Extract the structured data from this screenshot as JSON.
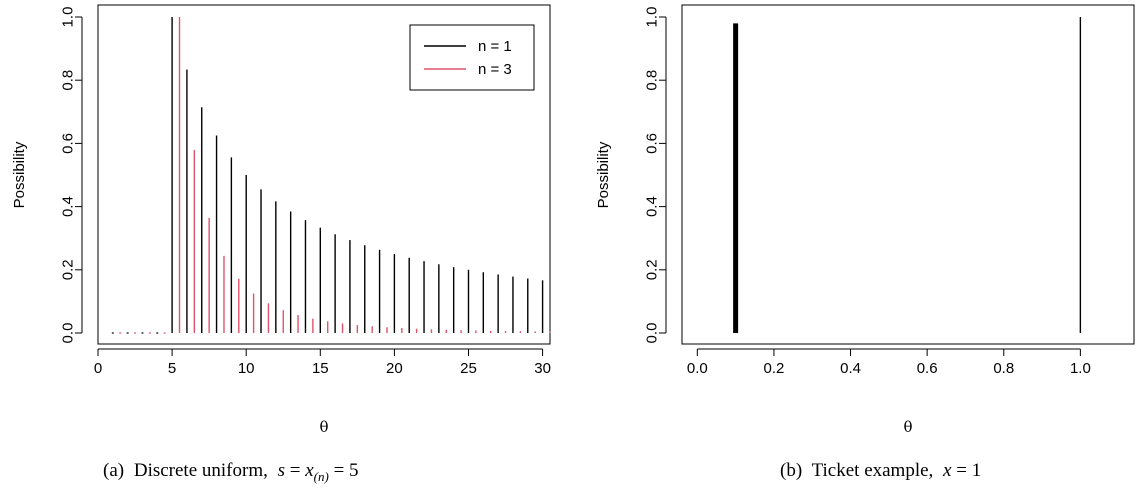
{
  "chart_data": [
    {
      "type": "line",
      "panel": "a",
      "ylabel": "Possibility",
      "xlabel": "θ",
      "xlim": [
        0,
        30.5
      ],
      "ylim": [
        0,
        1
      ],
      "x_ticks": [
        "0",
        "5",
        "10",
        "15",
        "20",
        "25",
        "30"
      ],
      "y_ticks": [
        "0.0",
        "0.2",
        "0.4",
        "0.6",
        "0.8",
        "1.0"
      ],
      "legend_position": "top-right",
      "series": [
        {
          "name": "n = 1",
          "color": "#000000",
          "x": [
            1,
            2,
            3,
            4,
            5,
            6,
            7,
            8,
            9,
            10,
            11,
            12,
            13,
            14,
            15,
            16,
            17,
            18,
            19,
            20,
            21,
            22,
            23,
            24,
            25,
            26,
            27,
            28,
            29,
            30
          ],
          "values": [
            0,
            0,
            0,
            0,
            1.0,
            0.8333,
            0.7143,
            0.625,
            0.5556,
            0.5,
            0.4545,
            0.4167,
            0.3846,
            0.3571,
            0.3333,
            0.3125,
            0.2941,
            0.2778,
            0.2632,
            0.25,
            0.2381,
            0.2273,
            0.2174,
            0.2083,
            0.2,
            0.1923,
            0.1852,
            0.1786,
            0.1724,
            0.1667
          ]
        },
        {
          "name": "n = 3",
          "color": "#DF536B",
          "x": [
            1.5,
            2.5,
            3.5,
            4.5,
            5.5,
            6.5,
            7.5,
            8.5,
            9.5,
            10.5,
            11.5,
            12.5,
            13.5,
            14.5,
            15.5,
            16.5,
            17.5,
            18.5,
            19.5,
            20.5,
            21.5,
            22.5,
            23.5,
            24.5,
            25.5,
            26.5,
            27.5,
            28.5,
            29.5,
            30.5
          ],
          "values": [
            0,
            0,
            0,
            0,
            1.0,
            0.5787,
            0.3644,
            0.2441,
            0.1715,
            0.125,
            0.0939,
            0.0723,
            0.0569,
            0.0455,
            0.037,
            0.0305,
            0.0254,
            0.0214,
            0.0182,
            0.0156,
            0.0135,
            0.0117,
            0.0103,
            0.009,
            0.008,
            0.0071,
            0.0064,
            0.0057,
            0.0051,
            0.0046
          ]
        }
      ],
      "caption": {
        "label": "(a)",
        "text": "Discrete uniform,",
        "math_var1": "s",
        "math_eq": " = ",
        "math_var2": "x",
        "math_sub": "(n)",
        "math_eq2": " = 5"
      }
    },
    {
      "type": "line",
      "panel": "b",
      "ylabel": "Possibility",
      "xlabel": "θ",
      "xlim": [
        -0.04,
        1.14
      ],
      "ylim": [
        0,
        1
      ],
      "x_ticks": [
        "0.0",
        "0.2",
        "0.4",
        "0.6",
        "0.8",
        "1.0"
      ],
      "y_ticks": [
        "0.0",
        "0.2",
        "0.4",
        "0.6",
        "0.8",
        "1.0"
      ],
      "series": [
        {
          "color": "#000000",
          "x": [
            0.1,
            1.0
          ],
          "values": [
            0.98,
            1.0
          ],
          "thickness": [
            "thick",
            "thin"
          ]
        }
      ],
      "caption": {
        "label": "(b)",
        "text": "Ticket example,",
        "math_var1": "x",
        "math_eq": " = 1"
      }
    }
  ]
}
